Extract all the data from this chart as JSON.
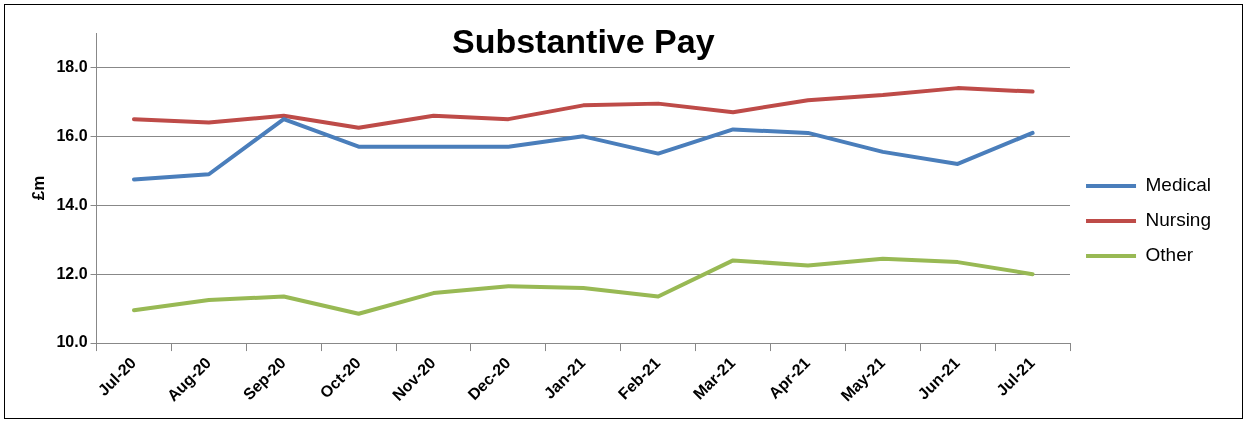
{
  "chart_data": {
    "type": "line",
    "title": "Substantive Pay",
    "ylabel": "£m",
    "categories": [
      "Jul-20",
      "Aug-20",
      "Sep-20",
      "Oct-20",
      "Nov-20",
      "Dec-20",
      "Jan-21",
      "Feb-21",
      "Mar-21",
      "Apr-21",
      "May-21",
      "Jun-21",
      "Jul-21"
    ],
    "series": [
      {
        "name": "Medical",
        "color": "#4a7ebb",
        "values": [
          14.75,
          14.9,
          16.5,
          15.7,
          15.7,
          15.7,
          16.0,
          15.5,
          16.2,
          16.1,
          15.55,
          15.2,
          16.1
        ]
      },
      {
        "name": "Nursing",
        "color": "#be4b48",
        "values": [
          16.5,
          16.4,
          16.6,
          16.25,
          16.6,
          16.5,
          16.9,
          16.95,
          16.7,
          17.05,
          17.2,
          17.4,
          17.3
        ]
      },
      {
        "name": "Other",
        "color": "#98b954",
        "values": [
          10.95,
          11.25,
          11.35,
          10.85,
          11.45,
          11.65,
          11.6,
          11.35,
          12.4,
          12.25,
          12.45,
          12.35,
          12.0
        ]
      }
    ],
    "ylim": [
      10,
      19
    ],
    "yticks": [
      {
        "value": 10,
        "label": "10.0"
      },
      {
        "value": 12,
        "label": "12.0"
      },
      {
        "value": 14,
        "label": "14.0"
      },
      {
        "value": 16,
        "label": "16.0"
      },
      {
        "value": 18,
        "label": "18.0"
      }
    ],
    "grid": "y",
    "legend": "right",
    "marker": "none",
    "line_style": "solid"
  }
}
